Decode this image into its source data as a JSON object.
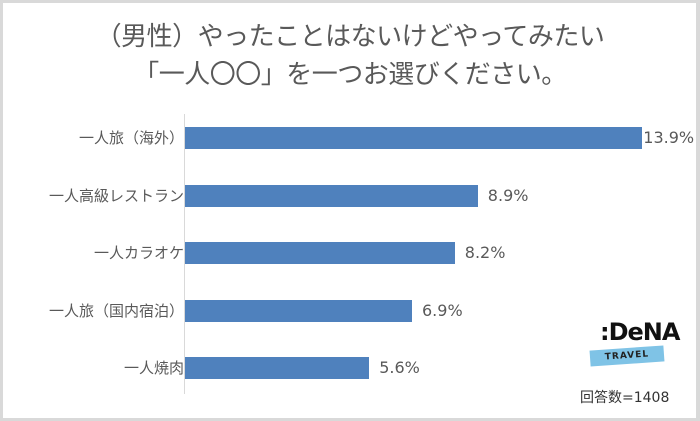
{
  "title": {
    "line1": "（男性）やったことはないけどやってみたい",
    "line2": "「一人〇〇」を一つお選びください。"
  },
  "note": "回答数=1408",
  "logo": {
    "brand": ":DeNA",
    "sub": "TRAVEL",
    "band_color": "#7fc3e6"
  },
  "bar_color": "#4f81bd",
  "chart_data": {
    "type": "bar",
    "orientation": "horizontal",
    "title": "（男性）やったことはないけどやってみたい「一人〇〇」を一つお選びください。",
    "categories": [
      "一人旅（海外）",
      "一人高級レストラン",
      "一人カラオケ",
      "一人旅（国内宿泊）",
      "一人焼肉"
    ],
    "values": [
      13.9,
      8.9,
      8.2,
      6.9,
      5.6
    ],
    "labels": [
      "13.9%",
      "8.9%",
      "8.2%",
      "6.9%",
      "5.6%"
    ],
    "unit": "%",
    "xlabel": "",
    "ylabel": "",
    "grid": false,
    "legend": null,
    "annotation": "回答数=1408"
  }
}
